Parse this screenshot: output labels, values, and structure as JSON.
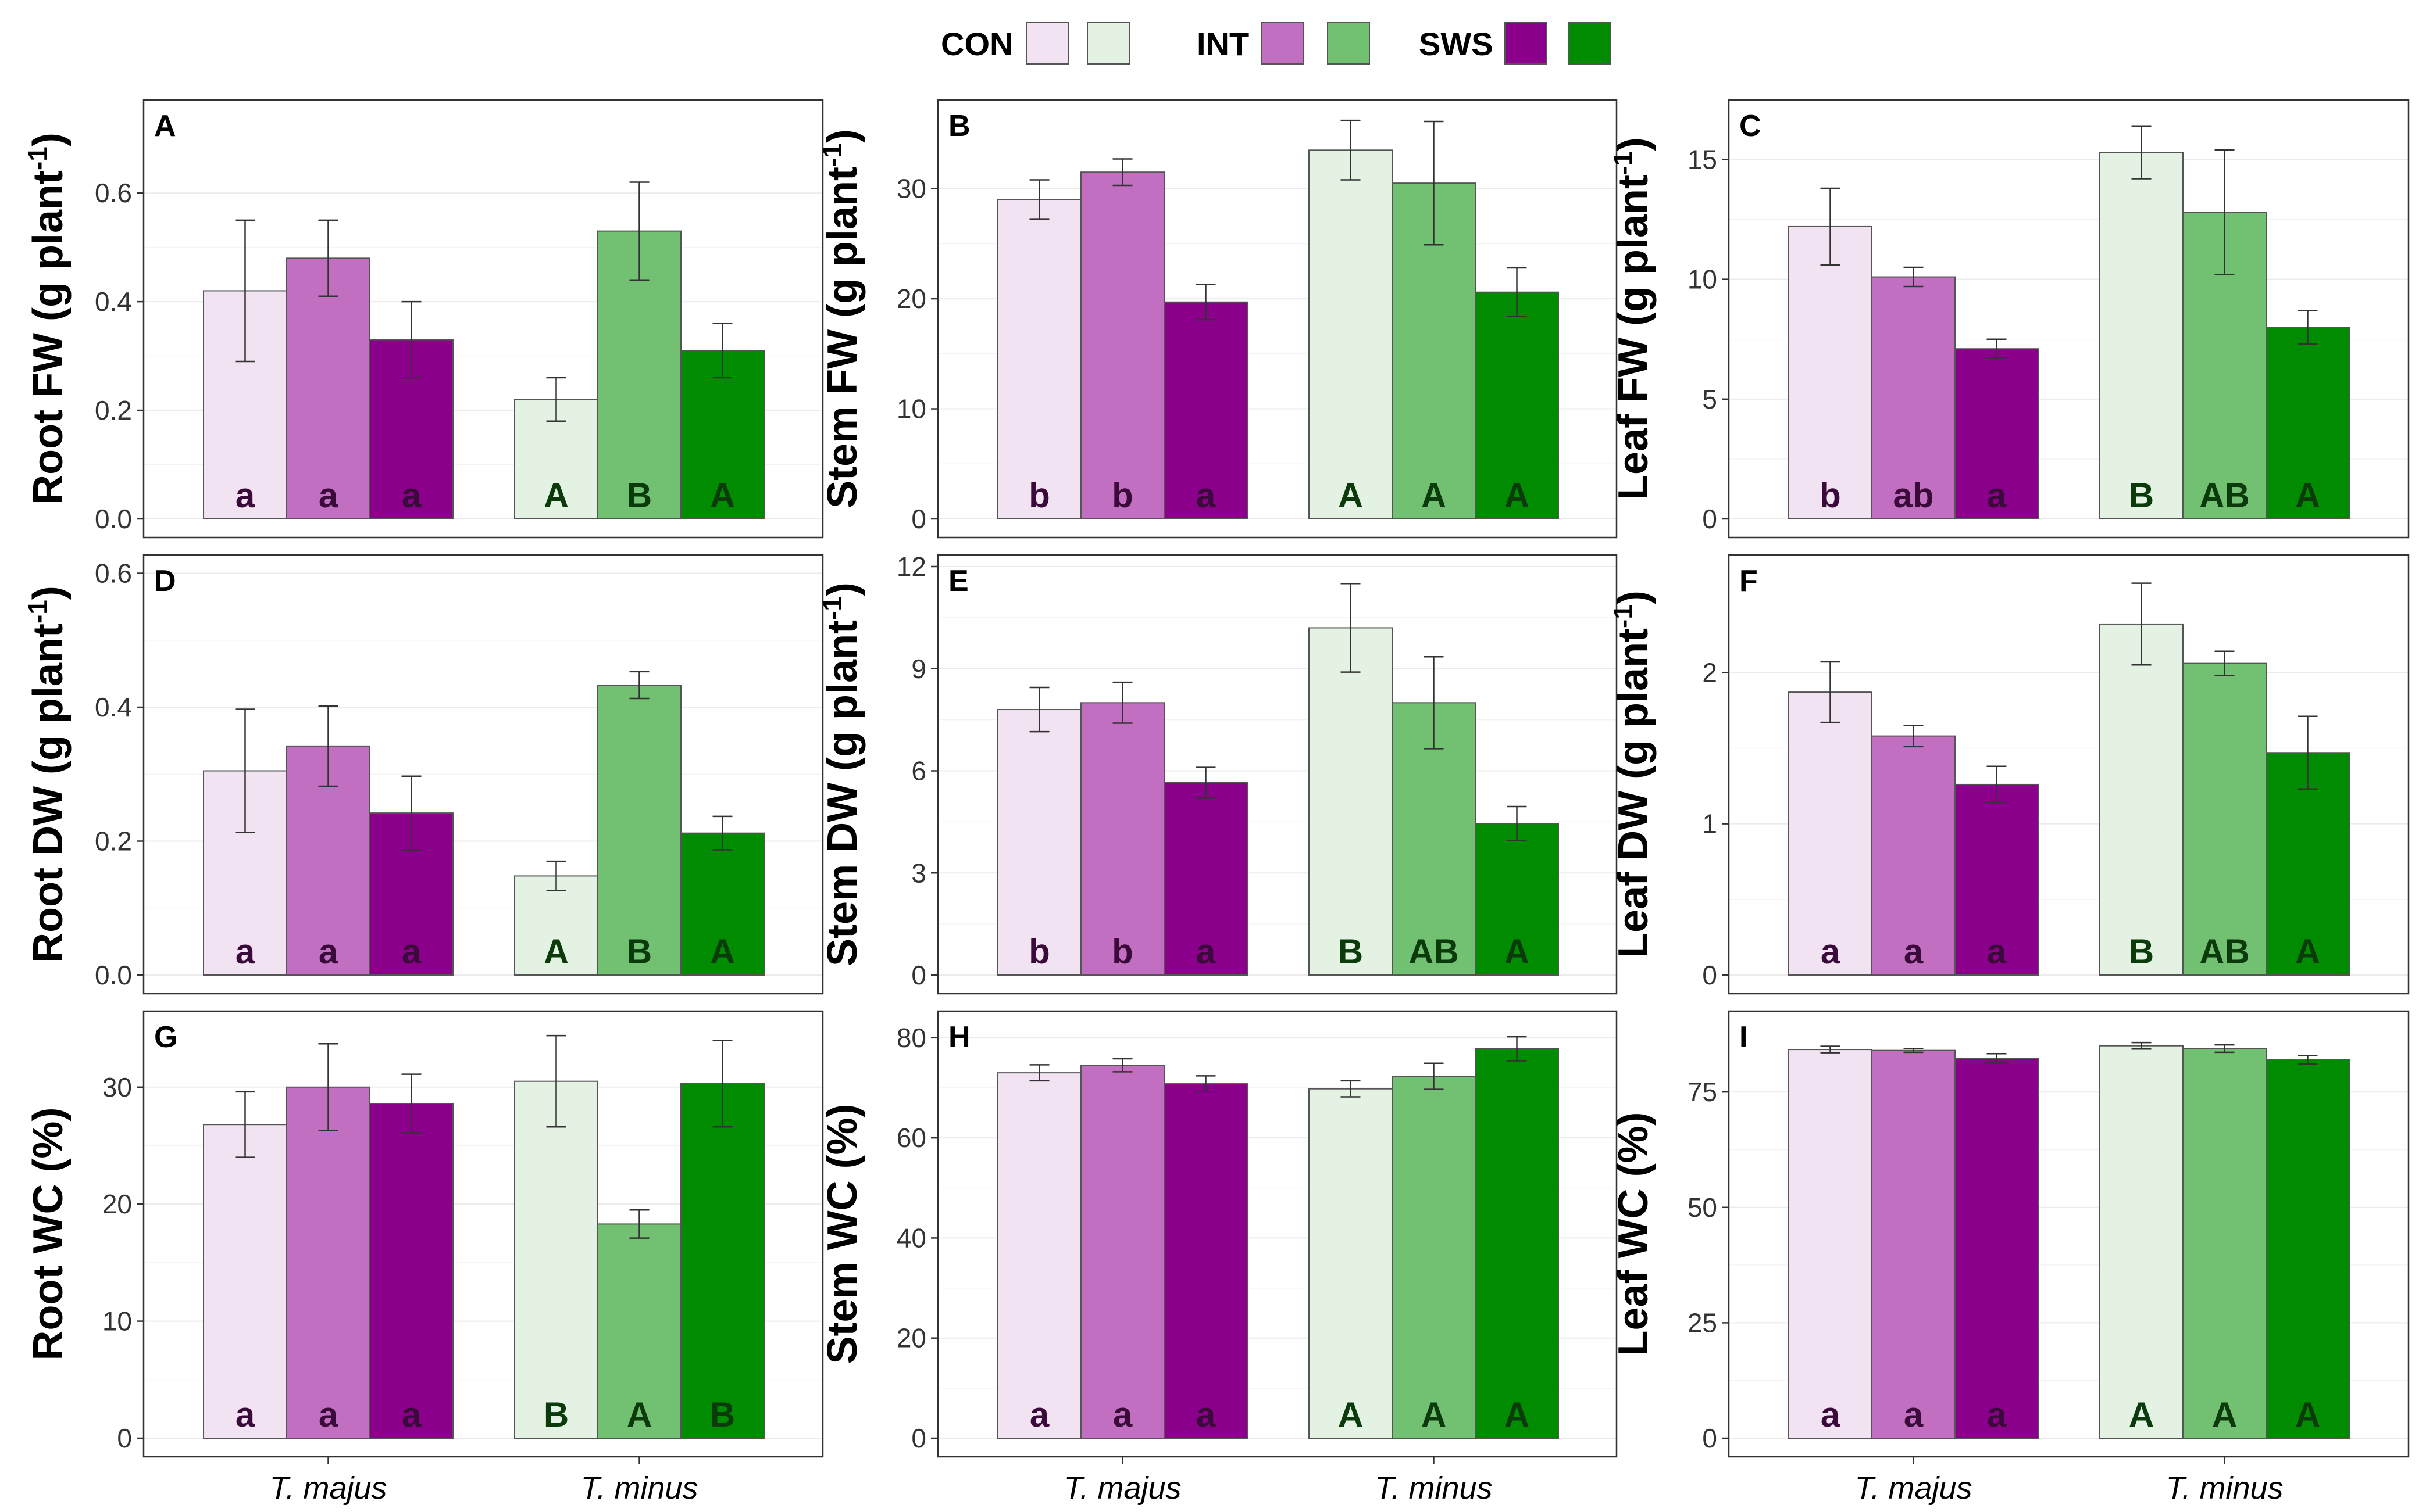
{
  "legend": {
    "groups": [
      {
        "label": "CON",
        "colors": [
          "#f1e3f1",
          "#e3f2e3"
        ]
      },
      {
        "label": "INT",
        "colors": [
          "#c26fc2",
          "#72c072"
        ]
      },
      {
        "label": "SWS",
        "colors": [
          "#8b008b",
          "#008b00"
        ]
      }
    ]
  },
  "colors": {
    "majus": [
      "#f1e3f1",
      "#c26fc2",
      "#8b008b"
    ],
    "minus": [
      "#e3f2e3",
      "#72c072",
      "#008b00"
    ],
    "sig_majus": "#3a0a3a",
    "sig_minus": "#0b3a0b"
  },
  "x_categories": [
    "T. majus",
    "T. minus"
  ],
  "chart_data": [
    {
      "id": "A",
      "type": "bar",
      "ylabel": "Root FW (g plant",
      "ylabel_sup": "-1",
      "ylabel_end": ")",
      "ylim": [
        0,
        0.75
      ],
      "yticks": [
        0,
        0.2,
        0.4,
        0.6
      ],
      "tick_labels": [
        "0.0",
        "0.2",
        "0.4",
        "0.6"
      ],
      "categories": [
        "T. majus",
        "T. minus"
      ],
      "treatments": [
        "CON",
        "INT",
        "SWS"
      ],
      "values": [
        [
          0.42,
          0.48,
          0.33
        ],
        [
          0.22,
          0.53,
          0.31
        ]
      ],
      "errors": [
        [
          0.13,
          0.07,
          0.07
        ],
        [
          0.04,
          0.09,
          0.05
        ]
      ],
      "letters": [
        [
          "a",
          "a",
          "a"
        ],
        [
          "A",
          "B",
          "A"
        ]
      ]
    },
    {
      "id": "B",
      "type": "bar",
      "ylabel": "Stem FW (g plant",
      "ylabel_sup": "-1",
      "ylabel_end": ")",
      "ylim": [
        0,
        37
      ],
      "yticks": [
        0,
        10,
        20,
        30
      ],
      "tick_labels": [
        "0",
        "10",
        "20",
        "30"
      ],
      "categories": [
        "T. majus",
        "T. minus"
      ],
      "treatments": [
        "CON",
        "INT",
        "SWS"
      ],
      "values": [
        [
          29.0,
          31.5,
          19.7
        ],
        [
          33.5,
          30.5,
          20.6
        ]
      ],
      "errors": [
        [
          1.8,
          1.2,
          1.6
        ],
        [
          2.7,
          5.6,
          2.2
        ]
      ],
      "letters": [
        [
          "b",
          "b",
          "a"
        ],
        [
          "A",
          "A",
          "A"
        ]
      ]
    },
    {
      "id": "C",
      "type": "bar",
      "ylabel": "Leaf FW (g plant",
      "ylabel_sup": "-1",
      "ylabel_end": ")",
      "ylim": [
        0,
        17
      ],
      "yticks": [
        0,
        5,
        10,
        15
      ],
      "tick_labels": [
        "0",
        "5",
        "10",
        "15"
      ],
      "categories": [
        "T. majus",
        "T. minus"
      ],
      "treatments": [
        "CON",
        "INT",
        "SWS"
      ],
      "values": [
        [
          12.2,
          10.1,
          7.1
        ],
        [
          15.3,
          12.8,
          8.0
        ]
      ],
      "errors": [
        [
          1.6,
          0.4,
          0.4
        ],
        [
          1.1,
          2.6,
          0.7
        ]
      ],
      "letters": [
        [
          "b",
          "ab",
          "a"
        ],
        [
          "B",
          "AB",
          "A"
        ]
      ]
    },
    {
      "id": "D",
      "type": "bar",
      "ylabel": "Root DW (g plant",
      "ylabel_sup": "-1",
      "ylabel_end": ")",
      "ylim": [
        0,
        0.61
      ],
      "yticks": [
        0,
        0.2,
        0.4,
        0.6
      ],
      "tick_labels": [
        "0.0",
        "0.2",
        "0.4",
        "0.6"
      ],
      "categories": [
        "T. majus",
        "T. minus"
      ],
      "treatments": [
        "CON",
        "INT",
        "SWS"
      ],
      "values": [
        [
          0.305,
          0.342,
          0.242
        ],
        [
          0.148,
          0.433,
          0.212
        ]
      ],
      "errors": [
        [
          0.092,
          0.06,
          0.055
        ],
        [
          0.022,
          0.02,
          0.025
        ]
      ],
      "letters": [
        [
          "a",
          "a",
          "a"
        ],
        [
          "A",
          "B",
          "A"
        ]
      ]
    },
    {
      "id": "E",
      "type": "bar",
      "ylabel": "Stem DW (g plant",
      "ylabel_sup": "-1",
      "ylabel_end": ")",
      "ylim": [
        0,
        12
      ],
      "yticks": [
        0,
        3,
        6,
        9,
        12
      ],
      "tick_labels": [
        "0",
        "3",
        "6",
        "9",
        "12"
      ],
      "categories": [
        "T. majus",
        "T. minus"
      ],
      "treatments": [
        "CON",
        "INT",
        "SWS"
      ],
      "values": [
        [
          7.8,
          8.0,
          5.65
        ],
        [
          10.2,
          8.0,
          4.45
        ]
      ],
      "errors": [
        [
          0.65,
          0.6,
          0.45
        ],
        [
          1.3,
          1.35,
          0.5
        ]
      ],
      "letters": [
        [
          "b",
          "b",
          "a"
        ],
        [
          "B",
          "AB",
          "A"
        ]
      ]
    },
    {
      "id": "F",
      "type": "bar",
      "ylabel": "Leaf DW (g plant",
      "ylabel_sup": "-1",
      "ylabel_end": ")",
      "ylim": [
        0,
        2.7
      ],
      "yticks": [
        0,
        1,
        2
      ],
      "tick_labels": [
        "0",
        "1",
        "2"
      ],
      "categories": [
        "T. majus",
        "T. minus"
      ],
      "treatments": [
        "CON",
        "INT",
        "SWS"
      ],
      "values": [
        [
          1.87,
          1.58,
          1.26
        ],
        [
          2.32,
          2.06,
          1.47
        ]
      ],
      "errors": [
        [
          0.2,
          0.07,
          0.12
        ],
        [
          0.27,
          0.08,
          0.24
        ]
      ],
      "letters": [
        [
          "a",
          "a",
          "a"
        ],
        [
          "B",
          "AB",
          "A"
        ]
      ]
    },
    {
      "id": "G",
      "type": "bar",
      "ylabel": "Root WC (%)",
      "ylabel_sup": "",
      "ylabel_end": "",
      "ylim": [
        0,
        35.5
      ],
      "yticks": [
        0,
        10,
        20,
        30
      ],
      "tick_labels": [
        "0",
        "10",
        "20",
        "30"
      ],
      "categories": [
        "T. majus",
        "T. minus"
      ],
      "treatments": [
        "CON",
        "INT",
        "SWS"
      ],
      "values": [
        [
          26.8,
          30.0,
          28.6
        ],
        [
          30.5,
          18.3,
          30.3
        ]
      ],
      "errors": [
        [
          2.8,
          3.7,
          2.5
        ],
        [
          3.9,
          1.2,
          3.7
        ]
      ],
      "letters": [
        [
          "a",
          "a",
          "a"
        ],
        [
          "B",
          "A",
          "B"
        ]
      ]
    },
    {
      "id": "H",
      "type": "bar",
      "ylabel": "Stem WC (%)",
      "ylabel_sup": "",
      "ylabel_end": "",
      "ylim": [
        0,
        83
      ],
      "yticks": [
        0,
        20,
        40,
        60,
        80
      ],
      "tick_labels": [
        "0",
        "20",
        "40",
        "60",
        "80"
      ],
      "categories": [
        "T. majus",
        "T. minus"
      ],
      "treatments": [
        "CON",
        "INT",
        "SWS"
      ],
      "values": [
        [
          73.0,
          74.5,
          70.8
        ],
        [
          69.8,
          72.3,
          77.8
        ]
      ],
      "errors": [
        [
          1.6,
          1.3,
          1.6
        ],
        [
          1.6,
          2.6,
          2.4
        ]
      ],
      "letters": [
        [
          "a",
          "a",
          "a"
        ],
        [
          "A",
          "A",
          "A"
        ]
      ]
    },
    {
      "id": "I",
      "type": "bar",
      "ylabel": "Leaf WC (%)",
      "ylabel_sup": "",
      "ylabel_end": "",
      "ylim": [
        0,
        90
      ],
      "yticks": [
        0,
        25,
        50,
        75
      ],
      "tick_labels": [
        "0",
        "25",
        "50",
        "75"
      ],
      "categories": [
        "T. majus",
        "T. minus"
      ],
      "treatments": [
        "CON",
        "INT",
        "SWS"
      ],
      "values": [
        [
          84.2,
          84.0,
          82.3
        ],
        [
          85.0,
          84.4,
          82.0
        ]
      ],
      "errors": [
        [
          0.7,
          0.4,
          1.0
        ],
        [
          0.7,
          0.8,
          0.9
        ]
      ],
      "letters": [
        [
          "a",
          "a",
          "a"
        ],
        [
          "A",
          "A",
          "A"
        ]
      ]
    }
  ]
}
